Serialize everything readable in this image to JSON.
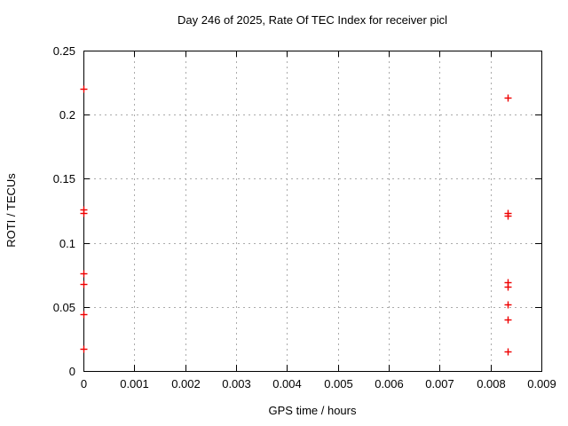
{
  "chart_data": {
    "type": "scatter",
    "title": "Day 246 of 2025, Rate Of TEC Index for receiver picl",
    "xlabel": "GPS time / hours",
    "ylabel": "ROTI / TECUs",
    "xlim": [
      0,
      0.009
    ],
    "ylim": [
      0,
      0.25
    ],
    "xtick_values": [
      0,
      0.001,
      0.002,
      0.003,
      0.004,
      0.005,
      0.006,
      0.007,
      0.008,
      0.009
    ],
    "xtick_labels": [
      "0",
      "0.001",
      "0.002",
      "0.003",
      "0.004",
      "0.005",
      "0.006",
      "0.007",
      "0.008",
      "0.009"
    ],
    "ytick_values": [
      0,
      0.05,
      0.1,
      0.15,
      0.2,
      0.25
    ],
    "ytick_labels": [
      "0",
      "0.05",
      "0.1",
      "0.15",
      "0.2",
      "0.25"
    ],
    "grid": true,
    "legend": "none",
    "series": [
      {
        "name": "ROTI",
        "marker": "plus",
        "color": "#ee0000",
        "points": [
          [
            0,
            0.22
          ],
          [
            0,
            0.126
          ],
          [
            0,
            0.123
          ],
          [
            0,
            0.076
          ],
          [
            0,
            0.068
          ],
          [
            0,
            0.044
          ],
          [
            0,
            0.017
          ],
          [
            0.00833,
            0.213
          ],
          [
            0.00833,
            0.123
          ],
          [
            0.00833,
            0.121
          ],
          [
            0.00833,
            0.069
          ],
          [
            0.00833,
            0.066
          ],
          [
            0.00833,
            0.052
          ],
          [
            0.00833,
            0.04
          ],
          [
            0.00833,
            0.015
          ]
        ]
      }
    ],
    "colors": {
      "background": "#ffffff",
      "border": "#000000",
      "grid": "#ababab",
      "text": "#000000"
    }
  }
}
